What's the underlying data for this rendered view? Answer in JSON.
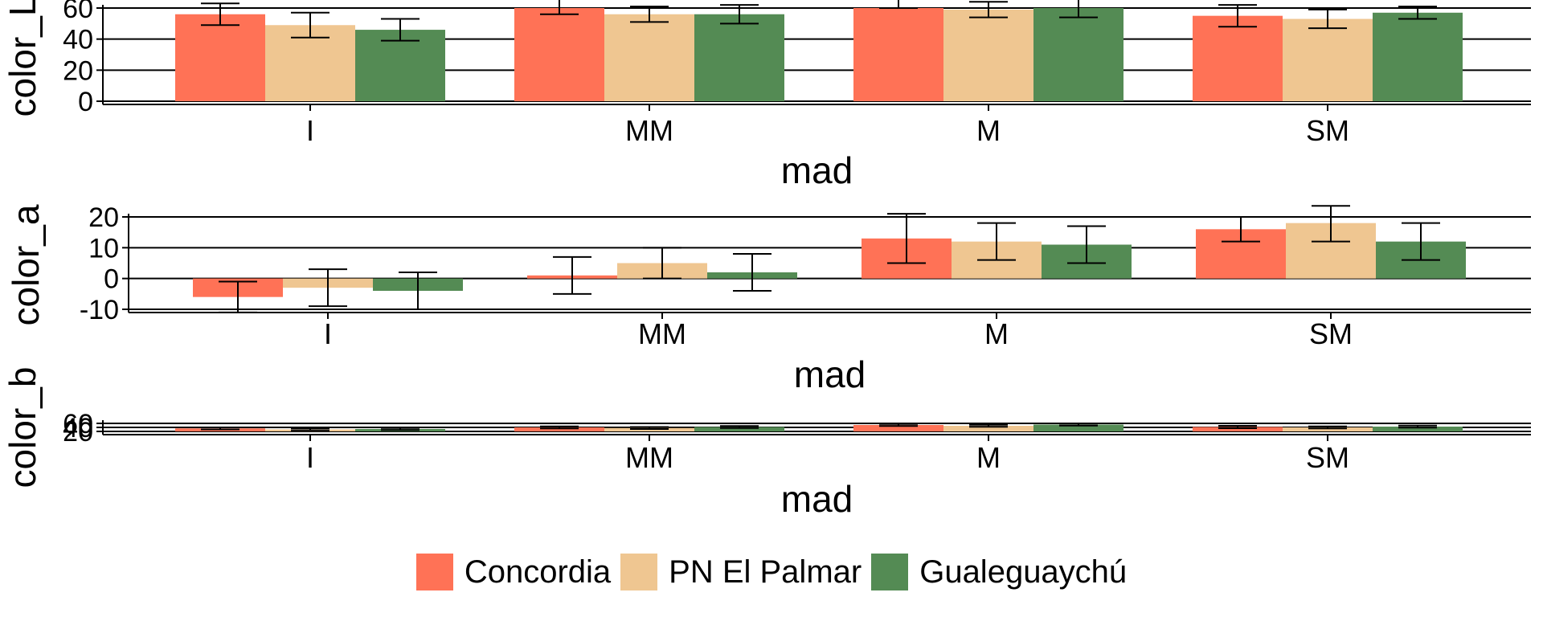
{
  "legend": {
    "entries": [
      {
        "label": "Concordia",
        "color": "#FF7256"
      },
      {
        "label": "PN El Palmar",
        "color": "#EFC691"
      },
      {
        "label": "Gualeguaychú",
        "color": "#548B54"
      }
    ]
  },
  "chart_data": [
    {
      "type": "bar",
      "xlabel": "mad",
      "ylabel": "color_L",
      "categories": [
        "I",
        "MM",
        "M",
        "SM"
      ],
      "ylim": [
        0,
        60
      ],
      "yticks": [
        "0",
        "20",
        "40",
        "60"
      ],
      "grid": true,
      "legend_position": "bottom",
      "error_bars": true,
      "series": [
        {
          "name": "Concordia",
          "values": [
            56,
            61,
            65,
            55
          ],
          "errors": [
            7,
            5,
            5,
            7
          ]
        },
        {
          "name": "PN El Palmar",
          "values": [
            49,
            56,
            59,
            53
          ],
          "errors": [
            8,
            5,
            5,
            6
          ]
        },
        {
          "name": "Gualeguaychú",
          "values": [
            46,
            56,
            60,
            57
          ],
          "errors": [
            7,
            6,
            6,
            4
          ]
        }
      ]
    },
    {
      "type": "bar",
      "xlabel": "mad",
      "ylabel": "color_a",
      "categories": [
        "I",
        "MM",
        "M",
        "SM"
      ],
      "ylim": [
        -10,
        20
      ],
      "yticks": [
        "-10",
        "0",
        "10",
        "20"
      ],
      "grid": true,
      "legend_position": "bottom",
      "error_bars": true,
      "series": [
        {
          "name": "Concordia",
          "values": [
            -6,
            1,
            13,
            16
          ],
          "errors": [
            5,
            6,
            8,
            4
          ]
        },
        {
          "name": "PN El Palmar",
          "values": [
            -3,
            5,
            12,
            18
          ],
          "errors": [
            6,
            5,
            6,
            6
          ]
        },
        {
          "name": "Gualeguaychú",
          "values": [
            -4,
            2,
            11,
            12
          ],
          "errors": [
            6,
            6,
            6,
            6
          ]
        }
      ]
    },
    {
      "type": "bar",
      "xlabel": "mad",
      "ylabel": "color_b",
      "categories": [
        "I",
        "MM",
        "M",
        "SM"
      ],
      "ylim": [
        20,
        60
      ],
      "yticks": [
        "20",
        "40",
        "60"
      ],
      "grid": true,
      "legend_position": "bottom",
      "error_bars": true,
      "series": [
        {
          "name": "Concordia",
          "values": [
            35,
            40,
            52,
            42
          ],
          "errors": [
            5,
            5,
            5,
            6
          ]
        },
        {
          "name": "PN El Palmar",
          "values": [
            30,
            37,
            48,
            40
          ],
          "errors": [
            5,
            5,
            5,
            5
          ]
        },
        {
          "name": "Gualeguaychú",
          "values": [
            32,
            42,
            54,
            44
          ],
          "errors": [
            5,
            5,
            5,
            5
          ]
        }
      ]
    }
  ]
}
